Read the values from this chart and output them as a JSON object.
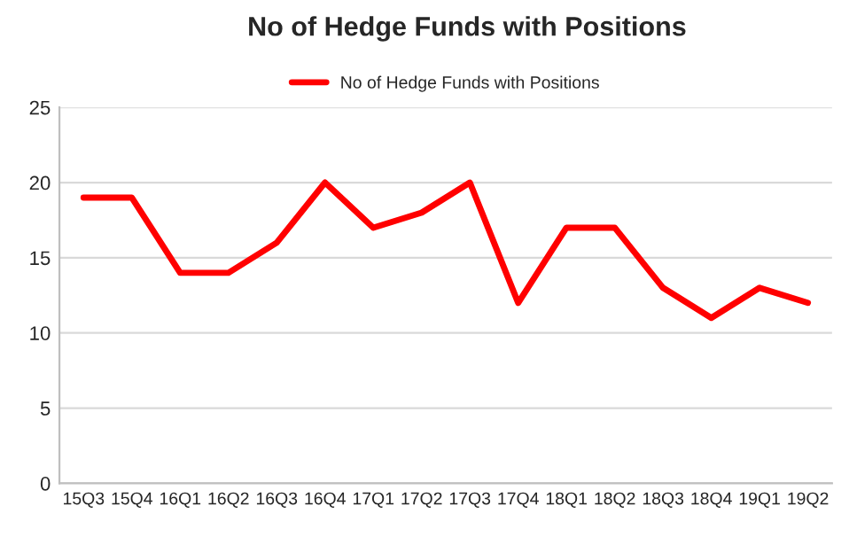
{
  "chart_data": {
    "type": "line",
    "title": "No of Hedge Funds with Positions",
    "categories": [
      "15Q3",
      "15Q4",
      "16Q1",
      "16Q2",
      "16Q3",
      "16Q4",
      "17Q1",
      "17Q2",
      "17Q3",
      "17Q4",
      "18Q1",
      "18Q2",
      "18Q3",
      "18Q4",
      "19Q1",
      "19Q2"
    ],
    "series": [
      {
        "name": "No of Hedge Funds with Positions",
        "color": "#ff0000",
        "values": [
          19,
          19,
          14,
          14,
          16,
          20,
          17,
          18,
          20,
          12,
          17,
          17,
          13,
          11,
          13,
          12
        ]
      }
    ],
    "ylim": [
      0,
      25
    ],
    "yticks": [
      0,
      5,
      10,
      15,
      20,
      25
    ],
    "grid": "y",
    "legend": "top",
    "marker": "none",
    "line_style": "solid"
  }
}
